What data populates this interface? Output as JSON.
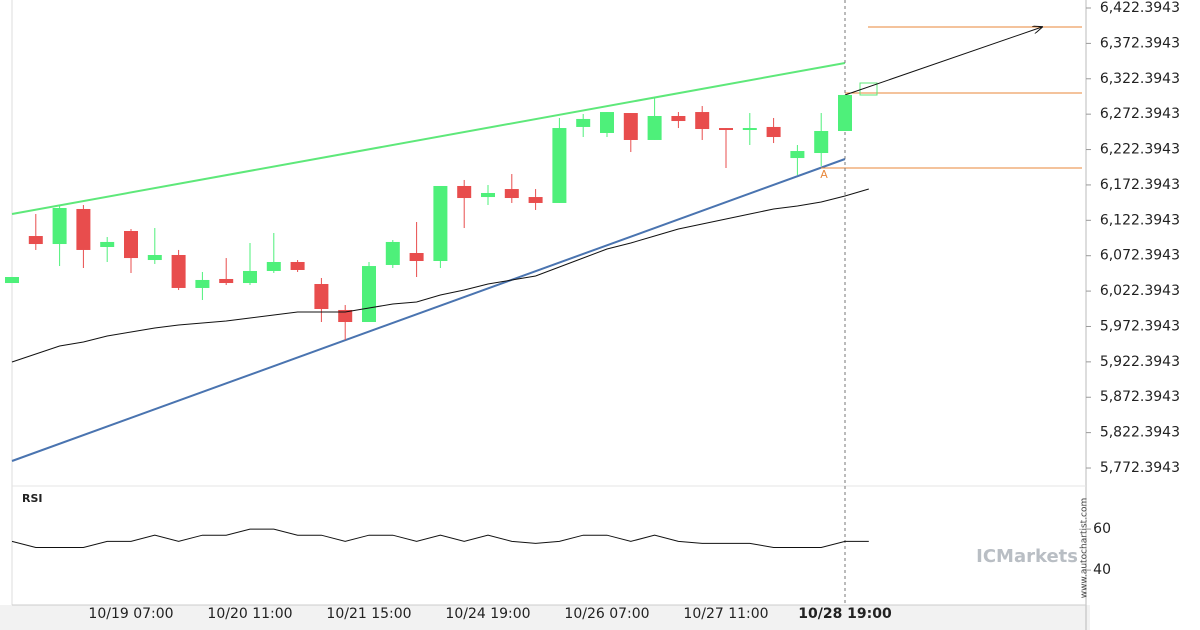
{
  "chart_data": {
    "type": "candlestick",
    "categories": [
      null,
      null,
      null,
      null,
      null,
      "10/19 07:00",
      null,
      null,
      null,
      null,
      "10/20 11:00",
      null,
      null,
      null,
      null,
      "10/21 15:00",
      null,
      null,
      null,
      null,
      "10/24 19:00",
      null,
      null,
      null,
      null,
      "10/26 07:00",
      null,
      null,
      null,
      null,
      "10/27 11:00",
      null,
      null,
      null,
      null,
      "10/28 19:00",
      null
    ],
    "open": [
      6033.8,
      6100.2,
      6088.9,
      6138.4,
      6084.7,
      6107.3,
      6066.3,
      6073.4,
      6026.8,
      6039.5,
      6033.8,
      6050.8,
      6063.5,
      6032.4,
      5995.7,
      5978.7,
      6059.3,
      6076.2,
      6064.9,
      6170.9,
      6155.3,
      6166.6,
      6155.3,
      6146.9,
      6254.3,
      6245.8,
      6274.0,
      6235.9,
      6269.8,
      6275.4,
      6252.8,
      6250.0,
      6254.3,
      6210.4,
      6217.5,
      6248.6,
      null
    ],
    "high": [
      6042.3,
      6131.3,
      6144.0,
      6144.0,
      6098.8,
      6110.1,
      6111.5,
      6080.5,
      6049.4,
      6069.1,
      6090.3,
      6104.5,
      6066.3,
      6040.9,
      6002.7,
      6063.5,
      6094.6,
      6120.0,
      6170.9,
      6179.4,
      6172.3,
      6187.8,
      6166.6,
      6267.0,
      6272.6,
      6275.4,
      6274.0,
      6295.2,
      6275.4,
      6283.9,
      6252.8,
      6274.0,
      6267.0,
      6228.8,
      6274.0,
      6299.5,
      null
    ],
    "low": [
      6033.8,
      6080.5,
      6057.8,
      6055.0,
      6063.5,
      6048.0,
      6060.7,
      6023.9,
      6009.8,
      6031.0,
      6031.0,
      6048.0,
      6049.4,
      5978.7,
      5953.3,
      5978.7,
      6055.0,
      6042.3,
      6055.0,
      6111.5,
      6144.0,
      6146.9,
      6137.0,
      6146.9,
      6240.1,
      6240.1,
      6218.9,
      6235.9,
      6252.8,
      6235.9,
      6196.3,
      6228.8,
      6231.6,
      6186.4,
      6199.1,
      6248.6,
      null
    ],
    "close": [
      6042.3,
      6088.9,
      6139.8,
      6080.5,
      6091.8,
      6069.1,
      6073.4,
      6026.8,
      6038.1,
      6033.8,
      6050.8,
      6063.5,
      6052.2,
      5997.1,
      5978.7,
      6057.8,
      6091.8,
      6064.9,
      6170.9,
      6153.9,
      6161.0,
      6153.9,
      6146.9,
      6252.8,
      6265.6,
      6275.4,
      6235.9,
      6269.8,
      6262.7,
      6251.4,
      6250.0,
      6252.8,
      6240.1,
      6220.3,
      6248.6,
      6299.5,
      null
    ],
    "up_color": "#4ef07a",
    "down_color": "#e84d4d",
    "moving_average": {
      "color": "#111111",
      "values": [
        5922.2,
        5933.5,
        5944.8,
        5950.5,
        5958.9,
        5964.6,
        5970.2,
        5974.5,
        5977.3,
        5980.1,
        5984.4,
        5988.6,
        5992.8,
        5992.8,
        5992.8,
        5998.5,
        6004.2,
        6007.0,
        6016.9,
        6023.9,
        6032.4,
        6038.1,
        6043.7,
        6056.4,
        6069.1,
        6081.9,
        6090.3,
        6100.2,
        6110.1,
        6117.2,
        6124.3,
        6131.3,
        6138.4,
        6142.6,
        6148.3,
        6156.8,
        6166.6
      ]
    },
    "ylim": [
      5748.4,
      6433.7
    ],
    "yticks": [
      {
        "value": 6422.3943,
        "label": "6,422.3943"
      },
      {
        "value": 6372.3943,
        "label": "6,372.3943"
      },
      {
        "value": 6322.3943,
        "label": "6,322.3943"
      },
      {
        "value": 6272.3943,
        "label": "6,272.3943"
      },
      {
        "value": 6222.3943,
        "label": "6,222.3943"
      },
      {
        "value": 6172.3943,
        "label": "6,172.3943"
      },
      {
        "value": 6122.3943,
        "label": "6,122.3943"
      },
      {
        "value": 6072.3943,
        "label": "6,072.3943"
      },
      {
        "value": 6022.3943,
        "label": "6,022.3943"
      },
      {
        "value": 5972.3943,
        "label": "5,972.3943"
      },
      {
        "value": 5922.3943,
        "label": "5,922.3943"
      },
      {
        "value": 5872.3943,
        "label": "5,872.3943"
      },
      {
        "value": 5822.3943,
        "label": "5,822.3943"
      },
      {
        "value": 5772.3943,
        "label": "5,772.3943"
      }
    ],
    "rsi": {
      "label": "RSI",
      "color": "#111111",
      "ylim": [
        23,
        80.5
      ],
      "yticks": [
        40,
        60
      ],
      "values": [
        54,
        51,
        51,
        51,
        54,
        54,
        57,
        54,
        57,
        57,
        60,
        60,
        57,
        57,
        54,
        57,
        57,
        54,
        57,
        54,
        57,
        54,
        53,
        54,
        57,
        57,
        54,
        57,
        54,
        53,
        53,
        53,
        51,
        51,
        51,
        54,
        54
      ]
    },
    "annotation_label": "A",
    "brand": "ICMarkets",
    "watermark": "www.autochartist.com"
  }
}
